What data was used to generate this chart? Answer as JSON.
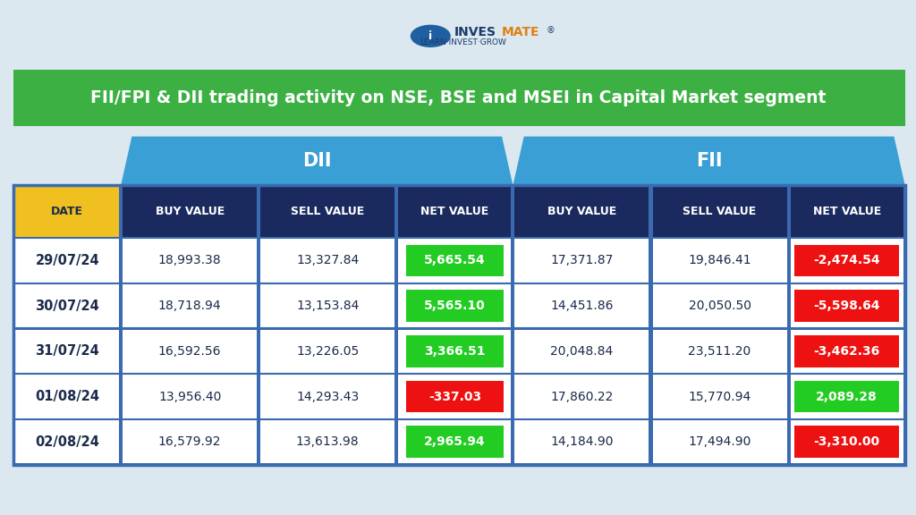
{
  "title": "FII/FPI & DII trading activity on NSE, BSE and MSEI in Capital Market segment",
  "title_bg": "#3cb043",
  "title_color": "#ffffff",
  "header_group_bg": "#3a9fd4",
  "header_group_color": "#ffffff",
  "header_col_bg": "#1a2a5e",
  "header_col_color": "#ffffff",
  "date_col_bg": "#f0c020",
  "date_col_color": "#1a2a4a",
  "row_bg": "#ffffff",
  "row_color": "#1a2a4a",
  "green_bg": "#22cc22",
  "red_bg": "#ee1111",
  "net_color": "#ffffff",
  "table_border": "#3a6ab0",
  "outer_bg": "#dce8f0",
  "logo_text_color": "#1a5276",
  "logo_inves_color": "#1a5276",
  "logo_mate_color": "#e8a020",
  "columns": [
    "DATE",
    "BUY VALUE",
    "SELL VALUE",
    "NET VALUE",
    "BUY VALUE",
    "SELL VALUE",
    "NET VALUE"
  ],
  "group_headers": [
    "DII",
    "FII"
  ],
  "rows": [
    [
      "29/07/24",
      "18,993.38",
      "13,327.84",
      "5,665.54",
      "17,371.87",
      "19,846.41",
      "-2,474.54"
    ],
    [
      "30/07/24",
      "18,718.94",
      "13,153.84",
      "5,565.10",
      "14,451.86",
      "20,050.50",
      "-5,598.64"
    ],
    [
      "31/07/24",
      "16,592.56",
      "13,226.05",
      "3,366.51",
      "20,048.84",
      "23,511.20",
      "-3,462.36"
    ],
    [
      "01/08/24",
      "13,956.40",
      "14,293.43",
      "-337.03",
      "17,860.22",
      "15,770.94",
      "2,089.28"
    ],
    [
      "02/08/24",
      "16,579.92",
      "13,613.98",
      "2,965.94",
      "14,184.90",
      "17,494.90",
      "-3,310.00"
    ]
  ],
  "net_dii_positive": [
    true,
    true,
    true,
    false,
    true
  ],
  "net_fii_positive": [
    false,
    false,
    false,
    true,
    false
  ]
}
